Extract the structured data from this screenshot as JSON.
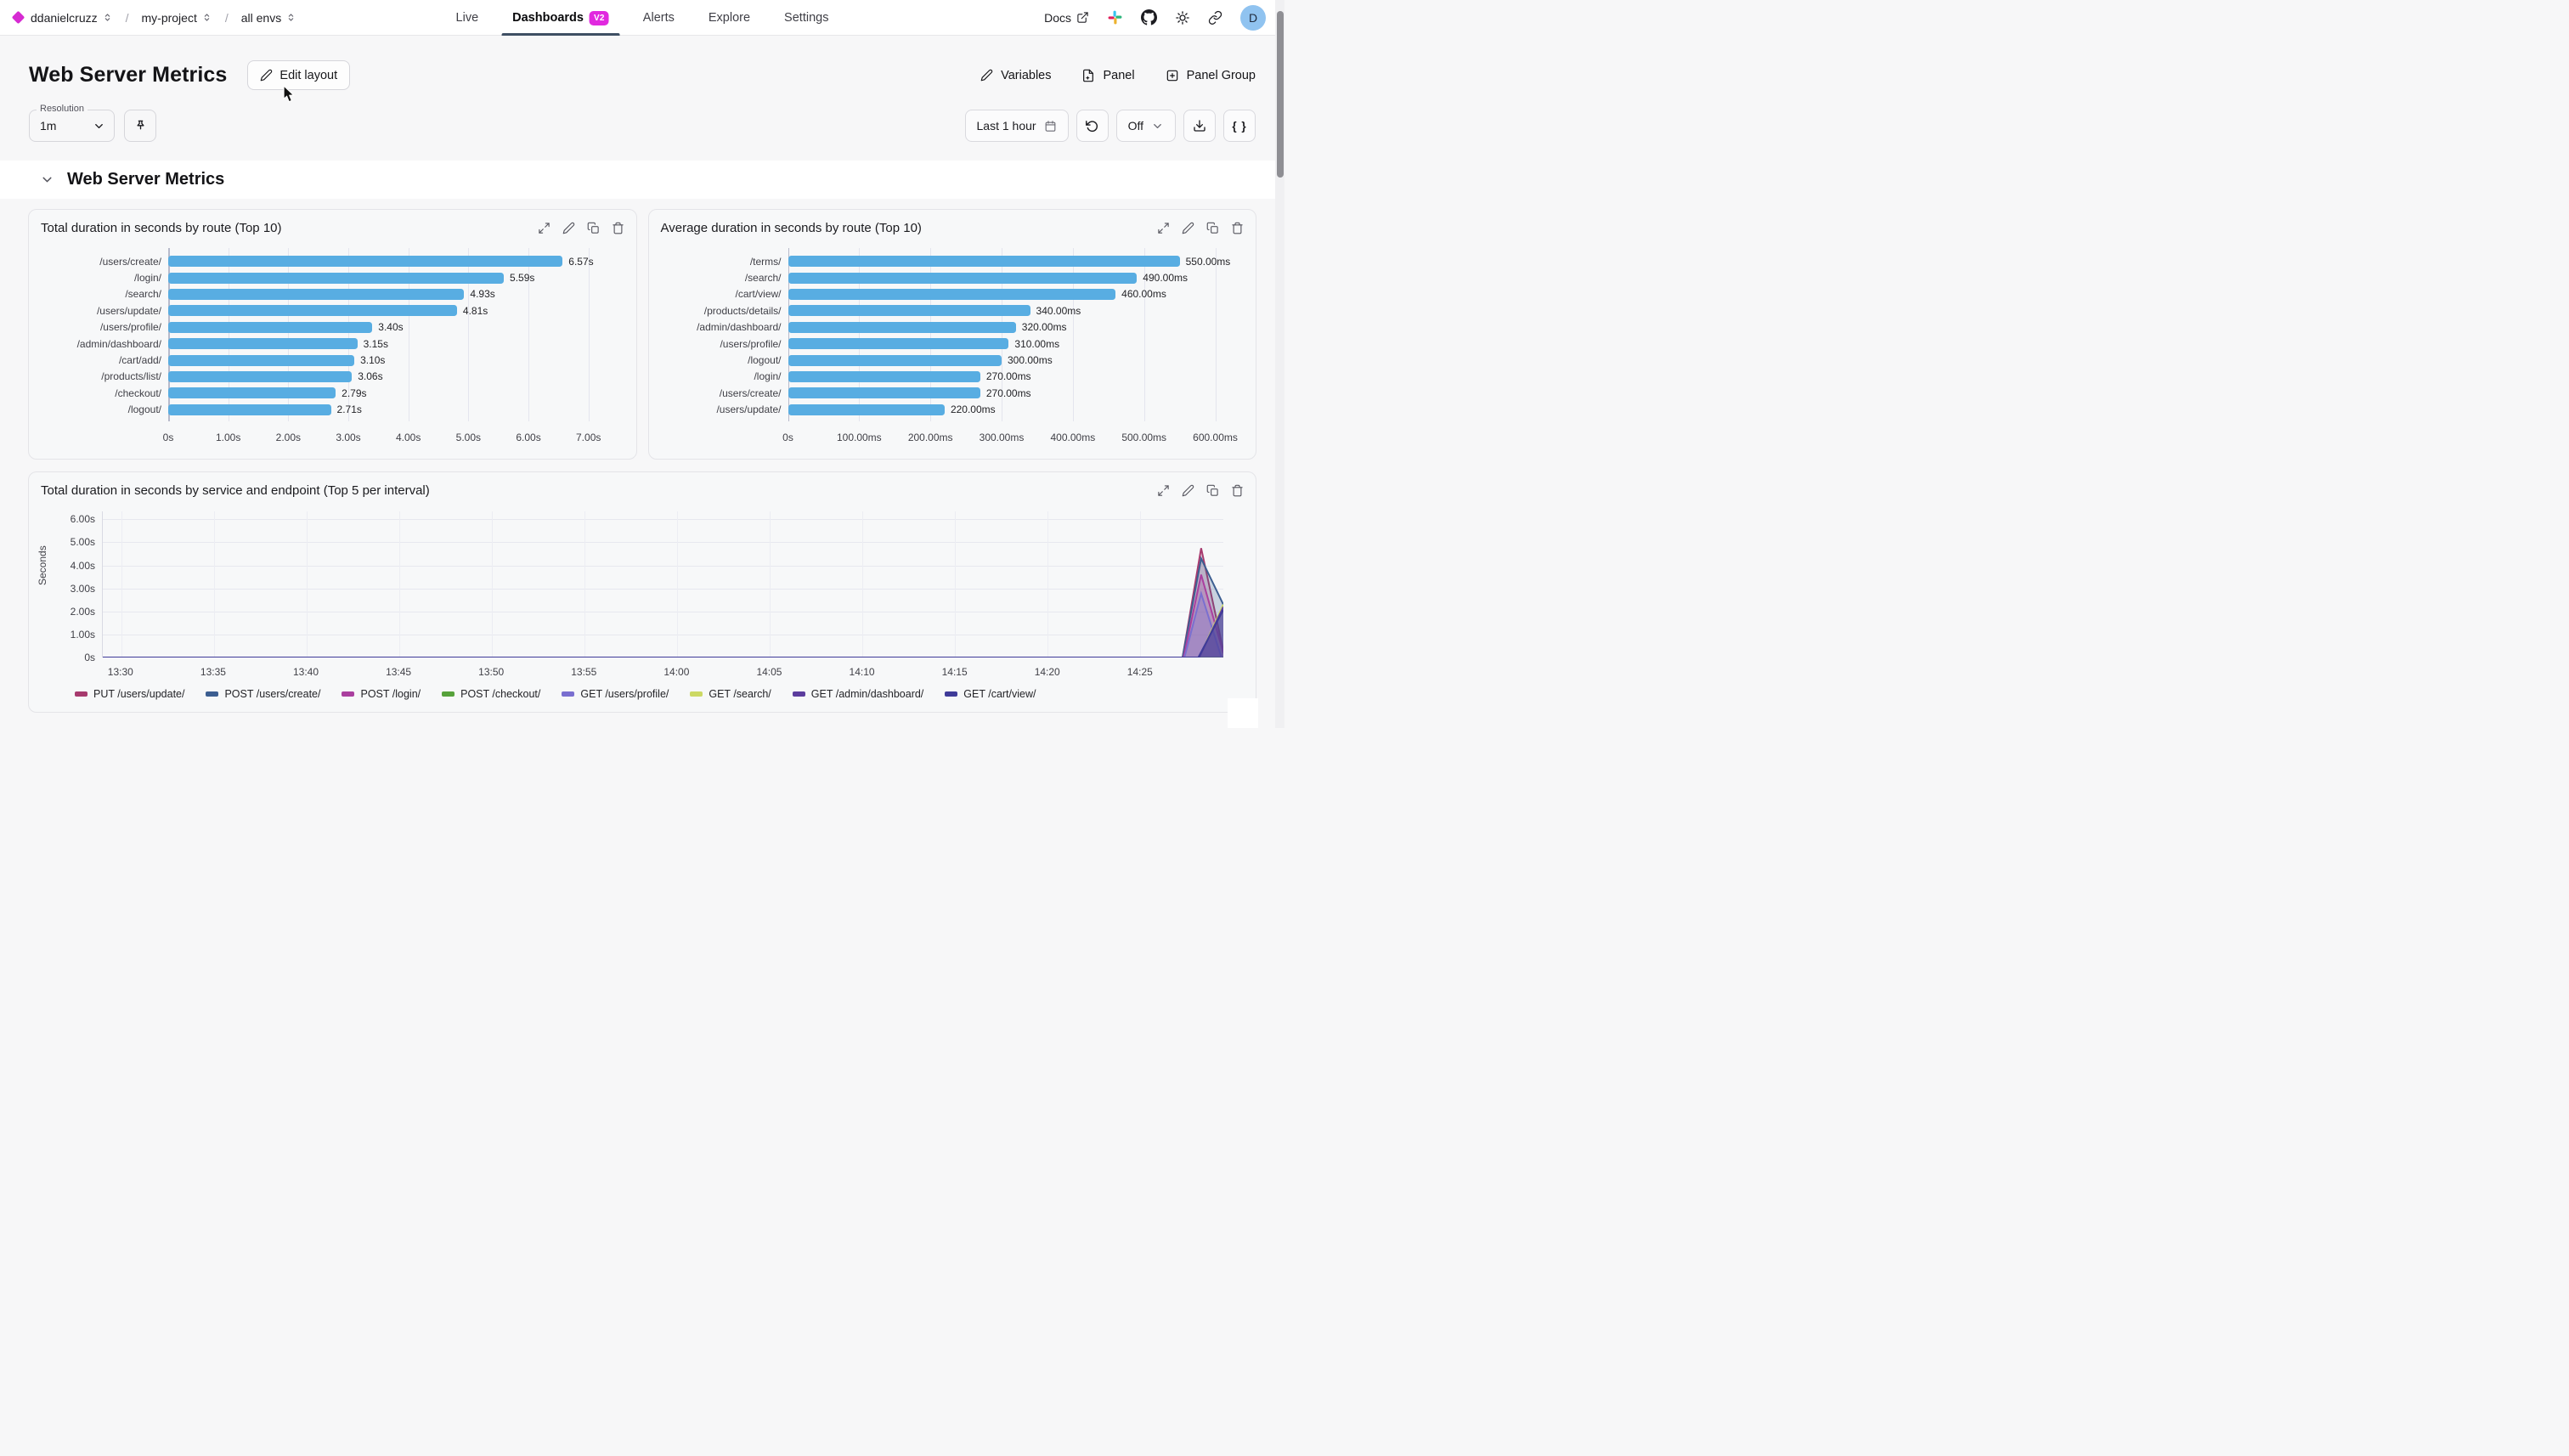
{
  "nav": {
    "breadcrumb": {
      "org": "ddanielcruzz",
      "project": "my-project",
      "env": "all envs"
    },
    "tabs": [
      {
        "label": "Live",
        "active": false
      },
      {
        "label": "Dashboards",
        "active": true,
        "badge": "v2"
      },
      {
        "label": "Alerts",
        "active": false
      },
      {
        "label": "Explore",
        "active": false
      },
      {
        "label": "Settings",
        "active": false
      }
    ],
    "docs_label": "Docs",
    "avatar_letter": "D"
  },
  "header": {
    "title": "Web Server Metrics",
    "edit_layout_label": "Edit layout",
    "variables_label": "Variables",
    "panel_label": "Panel",
    "panel_group_label": "Panel Group"
  },
  "toolbar": {
    "resolution_label": "Resolution",
    "resolution_value": "1m",
    "time_range_label": "Last 1 hour",
    "auto_refresh_value": "Off",
    "braces_label": "{ }"
  },
  "section": {
    "title": "Web Server Metrics"
  },
  "chart_data": [
    {
      "type": "bar",
      "orientation": "horizontal",
      "title": "Total duration in seconds by route (Top 10)",
      "categories": [
        "/users/create/",
        "/login/",
        "/search/",
        "/users/update/",
        "/users/profile/",
        "/admin/dashboard/",
        "/cart/add/",
        "/products/list/",
        "/checkout/",
        "/logout/"
      ],
      "values": [
        6.57,
        5.59,
        4.93,
        4.81,
        3.4,
        3.15,
        3.1,
        3.06,
        2.79,
        2.71
      ],
      "value_labels": [
        "6.57s",
        "5.59s",
        "4.93s",
        "4.81s",
        "3.40s",
        "3.15s",
        "3.10s",
        "3.06s",
        "2.79s",
        "2.71s"
      ],
      "x_ticks": [
        0,
        1,
        2,
        3,
        4,
        5,
        6,
        7
      ],
      "x_tick_labels": [
        "0s",
        "1.00s",
        "2.00s",
        "3.00s",
        "4.00s",
        "5.00s",
        "6.00s",
        "7.00s"
      ],
      "x_max": 7.45,
      "bar_color": "#58ade2"
    },
    {
      "type": "bar",
      "orientation": "horizontal",
      "title": "Average duration in seconds by route (Top 10)",
      "categories": [
        "/terms/",
        "/search/",
        "/cart/view/",
        "/products/details/",
        "/admin/dashboard/",
        "/users/profile/",
        "/logout/",
        "/login/",
        "/users/create/",
        "/users/update/"
      ],
      "values": [
        550,
        490,
        460,
        340,
        320,
        310,
        300,
        270,
        270,
        220
      ],
      "value_labels": [
        "550.00ms",
        "490.00ms",
        "460.00ms",
        "340.00ms",
        "320.00ms",
        "310.00ms",
        "300.00ms",
        "270.00ms",
        "270.00ms",
        "220.00ms"
      ],
      "x_ticks": [
        0,
        100,
        200,
        300,
        400,
        500,
        600
      ],
      "x_tick_labels": [
        "0s",
        "100.00ms",
        "200.00ms",
        "300.00ms",
        "400.00ms",
        "500.00ms",
        "600.00ms"
      ],
      "x_max": 628,
      "bar_color": "#58ade2"
    },
    {
      "type": "area",
      "title": "Total duration in seconds by service and endpoint (Top 5 per interval)",
      "ylabel": "Seconds",
      "y_ticks": [
        6,
        5,
        4,
        3,
        2,
        1,
        0
      ],
      "y_tick_labels": [
        "6.00s",
        "5.00s",
        "4.00s",
        "3.00s",
        "2.00s",
        "1.00s",
        "0s"
      ],
      "y_plot_max": 6.35,
      "x_axis": {
        "total_minutes": 60.5,
        "tick_minutes": [
          1,
          6,
          11,
          16,
          21,
          26,
          31,
          36,
          41,
          46,
          51,
          56
        ],
        "tick_labels": [
          "13:30",
          "13:35",
          "13:40",
          "13:45",
          "13:50",
          "13:55",
          "14:00",
          "14:05",
          "14:10",
          "14:15",
          "14:20",
          "14:25"
        ]
      },
      "series": [
        {
          "name": "PUT /users/update/",
          "color": "#a73a6e",
          "fill_opacity": 0.22,
          "points": [
            [
              0,
              0
            ],
            [
              58.3,
              0
            ],
            [
              59.3,
              4.75
            ],
            [
              60.5,
              0.3
            ]
          ]
        },
        {
          "name": "POST /users/create/",
          "color": "#3c5e91",
          "fill_opacity": 0.25,
          "points": [
            [
              0,
              0
            ],
            [
              58.3,
              0
            ],
            [
              59.3,
              4.3
            ],
            [
              60.5,
              2.3
            ]
          ]
        },
        {
          "name": "POST /login/",
          "color": "#aa3f9f",
          "fill_opacity": 0.25,
          "points": [
            [
              0,
              0
            ],
            [
              58.35,
              0
            ],
            [
              59.3,
              3.6
            ],
            [
              60.5,
              0.2
            ]
          ]
        },
        {
          "name": "POST /checkout/",
          "color": "#57a23b",
          "fill_opacity": 0.0,
          "points": [
            [
              0,
              0
            ],
            [
              60.5,
              0
            ]
          ]
        },
        {
          "name": "GET /users/profile/",
          "color": "#7a6fd0",
          "fill_opacity": 0.3,
          "points": [
            [
              0,
              0
            ],
            [
              58.4,
              0
            ],
            [
              59.3,
              2.78
            ],
            [
              60.4,
              0
            ]
          ]
        },
        {
          "name": "GET /search/",
          "color": "#ccd964",
          "fill_opacity": 0.1,
          "points": [
            [
              0,
              0
            ],
            [
              59.2,
              0
            ],
            [
              60.5,
              2.3
            ]
          ]
        },
        {
          "name": "GET /admin/dashboard/",
          "color": "#5c3d9e",
          "fill_opacity": 0.45,
          "points": [
            [
              0,
              0
            ],
            [
              59.2,
              0
            ],
            [
              60.5,
              2.2
            ]
          ]
        },
        {
          "name": "GET /cart/view/",
          "color": "#3f3b99",
          "fill_opacity": 0.45,
          "points": [
            [
              0,
              0
            ],
            [
              59.15,
              0
            ],
            [
              60.5,
              2.08
            ]
          ]
        }
      ],
      "legend": [
        "PUT /users/update/",
        "POST /users/create/",
        "POST /login/",
        "POST /checkout/",
        "GET /users/profile/",
        "GET /search/",
        "GET /admin/dashboard/",
        "GET /cart/view/"
      ]
    }
  ]
}
